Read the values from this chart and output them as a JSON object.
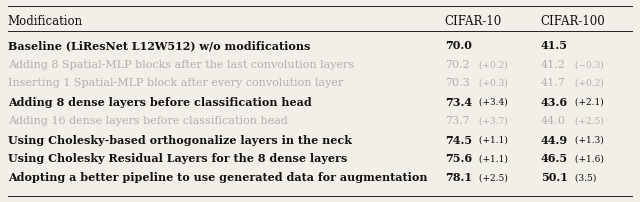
{
  "rows": [
    {
      "modification": "Baseline (LiResNet L12W512) w/o modifications",
      "cifar10_main": "70.0",
      "cifar10_delta": "",
      "cifar100_main": "41.5",
      "cifar100_delta": "",
      "grayed": false,
      "bold": true
    },
    {
      "modification": "Adding 8 Spatial-MLP blocks after the last convolution layers",
      "cifar10_main": "70.2",
      "cifar10_delta": " (+0.2)",
      "cifar100_main": "41.2",
      "cifar100_delta": " (−0.3)",
      "grayed": true,
      "bold": false
    },
    {
      "modification": "Inserting 1 Spatial-MLP block after every convolution layer",
      "cifar10_main": "70.3",
      "cifar10_delta": " (+0.3)",
      "cifar100_main": "41.7",
      "cifar100_delta": " (+0.2)",
      "grayed": true,
      "bold": false
    },
    {
      "modification": "Adding 8 dense layers before classification head",
      "cifar10_main": "73.4",
      "cifar10_delta": " (+3.4)",
      "cifar100_main": "43.6",
      "cifar100_delta": " (+2.1)",
      "grayed": false,
      "bold": true
    },
    {
      "modification": "Adding 16 dense layers before classification head",
      "cifar10_main": "73.7",
      "cifar10_delta": " (+3.7)",
      "cifar100_main": "44.0",
      "cifar100_delta": " (+2.5)",
      "grayed": true,
      "bold": false
    },
    {
      "modification": "Using Cholesky-based orthogonalize layers in the neck",
      "cifar10_main": "74.5",
      "cifar10_delta": " (+1.1)",
      "cifar100_main": "44.9",
      "cifar100_delta": " (+1.3)",
      "grayed": false,
      "bold": true
    },
    {
      "modification": "Using Cholesky Residual Layers for the 8 dense layers",
      "cifar10_main": "75.6",
      "cifar10_delta": " (+1.1)",
      "cifar100_main": "46.5",
      "cifar100_delta": " (+1.6)",
      "grayed": false,
      "bold": true
    },
    {
      "modification": "Adopting a better pipeline to use generated data for augmentation",
      "cifar10_main": "78.1",
      "cifar10_delta": " (+2.5)",
      "cifar100_main": "50.1",
      "cifar100_delta": " (3.5)",
      "grayed": false,
      "bold": true
    }
  ],
  "header": [
    "Modification",
    "CIFAR-10",
    "CIFAR-100"
  ],
  "background_color": "#f2efe9",
  "text_color_normal": "#111111",
  "text_color_gray": "#b0b0b0",
  "font_size_header": 8.5,
  "font_size_body": 8.0,
  "font_size_delta": 6.5
}
